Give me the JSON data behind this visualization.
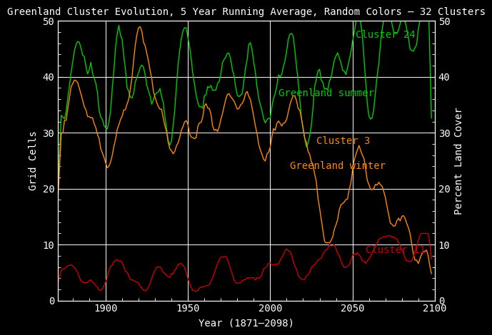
{
  "title": "Greenland Cluster Evolution, 5 Year Running Average, Random Colors — 32 Clusters",
  "xlabel": "Year (1871–2098)",
  "ylabel_left": "Grid Cells",
  "ylabel_right": "Percent Land Cover",
  "background_color": "#000000",
  "text_color": "#ffffff",
  "ylim": [
    0,
    50
  ],
  "xlim": [
    1871,
    2098
  ],
  "yticks": [
    0,
    10,
    20,
    30,
    40,
    50
  ],
  "xticks": [
    1900,
    1950,
    2000,
    2050,
    2100
  ],
  "hlines": [
    10,
    20,
    30,
    40
  ],
  "vlines": [
    1900,
    1950,
    2000,
    2050
  ],
  "cluster24_color": "#00cc00",
  "cluster3_color": "#ff8800",
  "cluster11_color": "#cc0000",
  "cluster24_label1": "Cluster 24",
  "cluster24_label2": "Greenland summer",
  "cluster3_label1": "Cluster 3",
  "cluster3_label2": "Greenland winter",
  "cluster11_label": "Cluster 11",
  "year_start": 1871,
  "year_end": 2098,
  "title_fontsize": 10,
  "axis_fontsize": 10,
  "label_fontsize": 10,
  "tick_fontsize": 10
}
